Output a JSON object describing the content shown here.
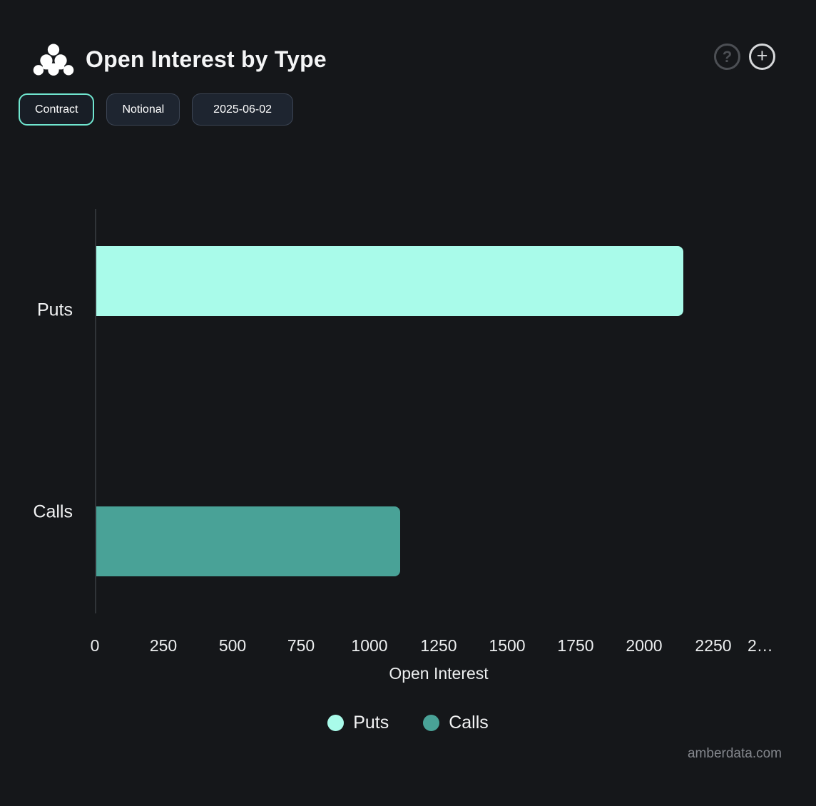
{
  "header": {
    "title": "Open Interest by Type",
    "logo_icon": "amberdata-dots-logo",
    "help_label": "?",
    "add_label": "+"
  },
  "toolbar": {
    "chips": [
      {
        "label": "Contract",
        "selected": true
      },
      {
        "label": "Notional",
        "selected": false
      },
      {
        "label": "2025-06-02",
        "selected": false
      }
    ]
  },
  "chart_data": {
    "type": "bar",
    "orientation": "horizontal",
    "title": "Open Interest by Type",
    "categories": [
      "Puts",
      "Calls"
    ],
    "series": [
      {
        "name": "Puts",
        "value": 2137,
        "color": "#A9FBEA"
      },
      {
        "name": "Calls",
        "value": 1107,
        "color": "#49A297"
      }
    ],
    "xlabel": "Open Interest",
    "ylabel": "",
    "xlim": [
      0,
      2500
    ],
    "x_ticks": [
      0,
      250,
      500,
      750,
      1000,
      1250,
      1500,
      1750,
      2000,
      2250,
      2500
    ],
    "x_tick_labels": [
      "0",
      "250",
      "500",
      "750",
      "1000",
      "1250",
      "1500",
      "1750",
      "2000",
      "2250",
      "2…"
    ],
    "grid": false,
    "legend_position": "bottom",
    "legend": {
      "entries": [
        {
          "label": "Puts",
          "color": "#A9FBEA"
        },
        {
          "label": "Calls",
          "color": "#49A297"
        }
      ]
    }
  },
  "footer": {
    "watermark": "amberdata.com"
  },
  "colors": {
    "background": "#15171A",
    "puts_bar": "#A9FBEA",
    "calls_bar": "#49A297",
    "chip_selected_border": "#70E6CF",
    "chip_border": "#3C4554",
    "axis_line": "#303438",
    "text": "#F2F3F4",
    "watermark": "#84878D"
  }
}
